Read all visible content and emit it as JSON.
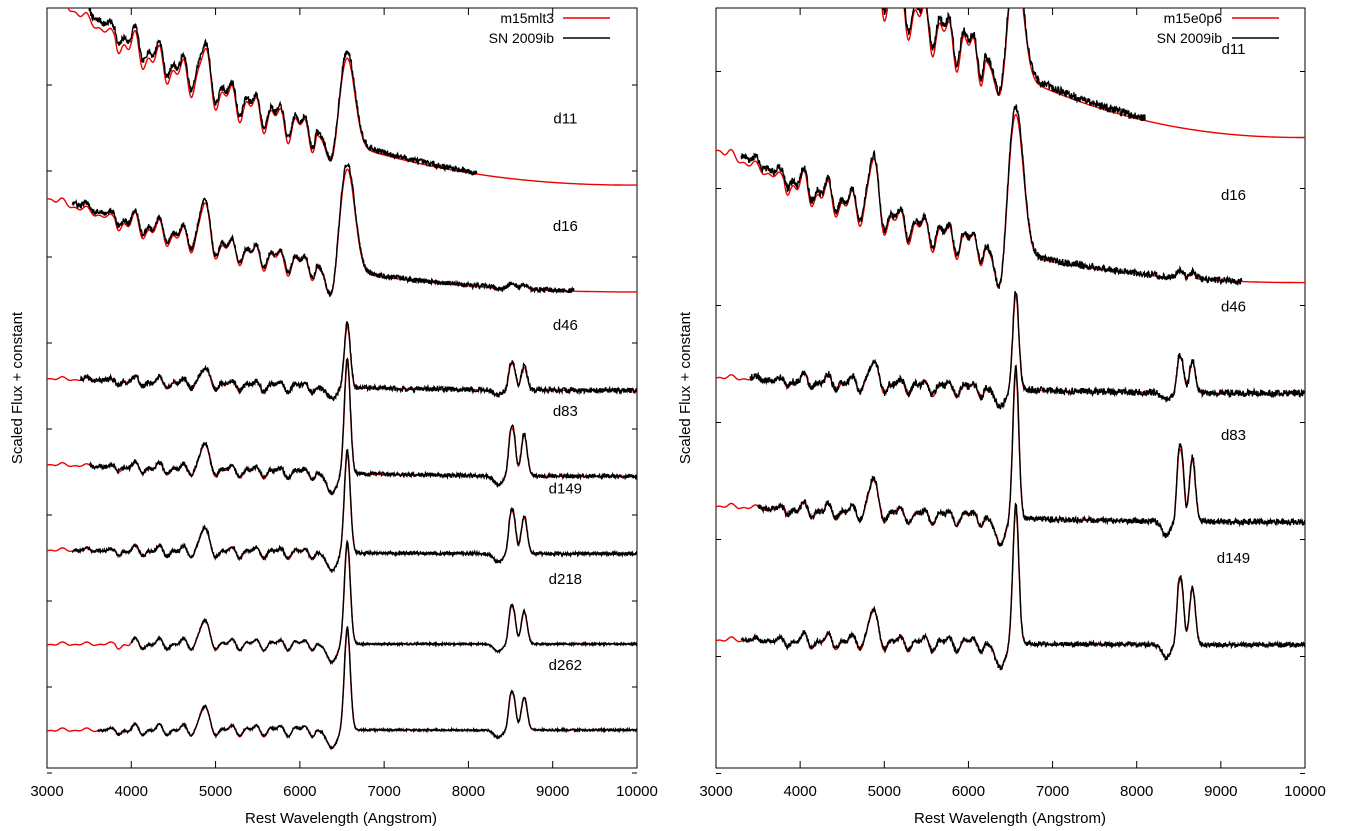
{
  "chart_data": [
    {
      "type": "line",
      "xlabel": "Rest Wavelength (Angstrom)",
      "ylabel": "Scaled Flux + constant",
      "xlim": [
        3000,
        10000
      ],
      "xticks": [
        3000,
        4000,
        5000,
        6000,
        7000,
        8000,
        9000,
        10000
      ],
      "y_tick_labels": "none",
      "grid": false,
      "legend_position": "top-right",
      "legend": [
        {
          "name": "m15mlt3",
          "color": "#ee0000"
        },
        {
          "name": "SN 2009ib",
          "color": "#000000"
        }
      ],
      "lines": [
        "H-alpha 6563",
        "Ca II triplet 8498/8542/8662"
      ],
      "epochs": [
        {
          "label": "d11",
          "offset": 6.0,
          "obs_range": [
            3500,
            8100
          ],
          "model_start": 3000,
          "cont_blue": 2.7,
          "cont_red": 0.35,
          "halpha_peak": 1.05,
          "cat_peak": 0.0,
          "noise": 0.035
        },
        {
          "label": "d16",
          "offset": 4.95,
          "obs_range": [
            3300,
            9250
          ],
          "model_start": 3000,
          "cont_blue": 1.3,
          "cont_red": 0.15,
          "halpha_peak": 1.25,
          "cat_peak": 0.05,
          "noise": 0.03
        },
        {
          "label": "d46",
          "offset": 3.9,
          "obs_range": [
            3400,
            10000
          ],
          "model_start": 3000,
          "cont_blue": 0.2,
          "cont_red": 0.05,
          "halpha_peak": 0.75,
          "cat_peak": 0.25,
          "noise": 0.03
        },
        {
          "label": "d83",
          "offset": 2.9,
          "obs_range": [
            3500,
            10000
          ],
          "model_start": 3000,
          "cont_blue": 0.2,
          "cont_red": 0.05,
          "halpha_peak": 1.35,
          "cat_peak": 0.45,
          "noise": 0.025
        },
        {
          "label": "d149",
          "offset": 2.0,
          "obs_range": [
            3300,
            10000
          ],
          "model_start": 3000,
          "cont_blue": 0.1,
          "cont_red": 0.05,
          "halpha_peak": 1.2,
          "cat_peak": 0.4,
          "noise": 0.02
        },
        {
          "label": "d218",
          "offset": 1.0,
          "obs_range": [
            4000,
            10000
          ],
          "model_start": 3000,
          "cont_blue": 0.0,
          "cont_red": 0.0,
          "halpha_peak": 1.2,
          "cat_peak": 0.35,
          "noise": 0.012
        },
        {
          "label": "d262",
          "offset": 0.0,
          "obs_range": [
            3600,
            10000
          ],
          "model_start": 3000,
          "cont_blue": 0.0,
          "cont_red": 0.0,
          "halpha_peak": 1.2,
          "cat_peak": 0.35,
          "noise": 0.012
        }
      ],
      "label_x": 9150
    },
    {
      "type": "line",
      "xlabel": "Rest Wavelength (Angstrom)",
      "ylabel": "Scaled Flux + constant",
      "xlim": [
        3000,
        10000
      ],
      "xticks": [
        3000,
        4000,
        5000,
        6000,
        7000,
        8000,
        9000,
        10000
      ],
      "y_tick_labels": "none",
      "grid": false,
      "legend_position": "top-right",
      "legend": [
        {
          "name": "m15e0p6",
          "color": "#ee0000"
        },
        {
          "name": "SN 2009ib",
          "color": "#000000"
        }
      ],
      "lines": [
        "H-alpha 6563",
        "Ca II triplet 8498/8542/8662"
      ],
      "epochs": [
        {
          "label": "d11",
          "offset": 4.6,
          "obs_range": [
            3900,
            8100
          ],
          "model_start": 3000,
          "cont_blue": 3.0,
          "cont_red": 0.35,
          "halpha_peak": 1.0,
          "cat_peak": 0.0,
          "noise": 0.035
        },
        {
          "label": "d16",
          "offset": 3.6,
          "obs_range": [
            3300,
            9250
          ],
          "model_start": 3000,
          "cont_blue": 1.3,
          "cont_red": 0.1,
          "halpha_peak": 1.25,
          "cat_peak": 0.05,
          "noise": 0.03
        },
        {
          "label": "d46",
          "offset": 2.7,
          "obs_range": [
            3400,
            10000
          ],
          "model_start": 3000,
          "cont_blue": 0.2,
          "cont_red": 0.05,
          "halpha_peak": 0.85,
          "cat_peak": 0.25,
          "noise": 0.03
        },
        {
          "label": "d83",
          "offset": 1.6,
          "obs_range": [
            3500,
            10000
          ],
          "model_start": 3000,
          "cont_blue": 0.2,
          "cont_red": 0.05,
          "halpha_peak": 1.3,
          "cat_peak": 0.5,
          "noise": 0.025
        },
        {
          "label": "d149",
          "offset": 0.55,
          "obs_range": [
            3300,
            10000
          ],
          "model_start": 3000,
          "cont_blue": 0.1,
          "cont_red": 0.05,
          "halpha_peak": 1.2,
          "cat_peak": 0.45,
          "noise": 0.02
        }
      ],
      "label_x": 9150
    }
  ]
}
